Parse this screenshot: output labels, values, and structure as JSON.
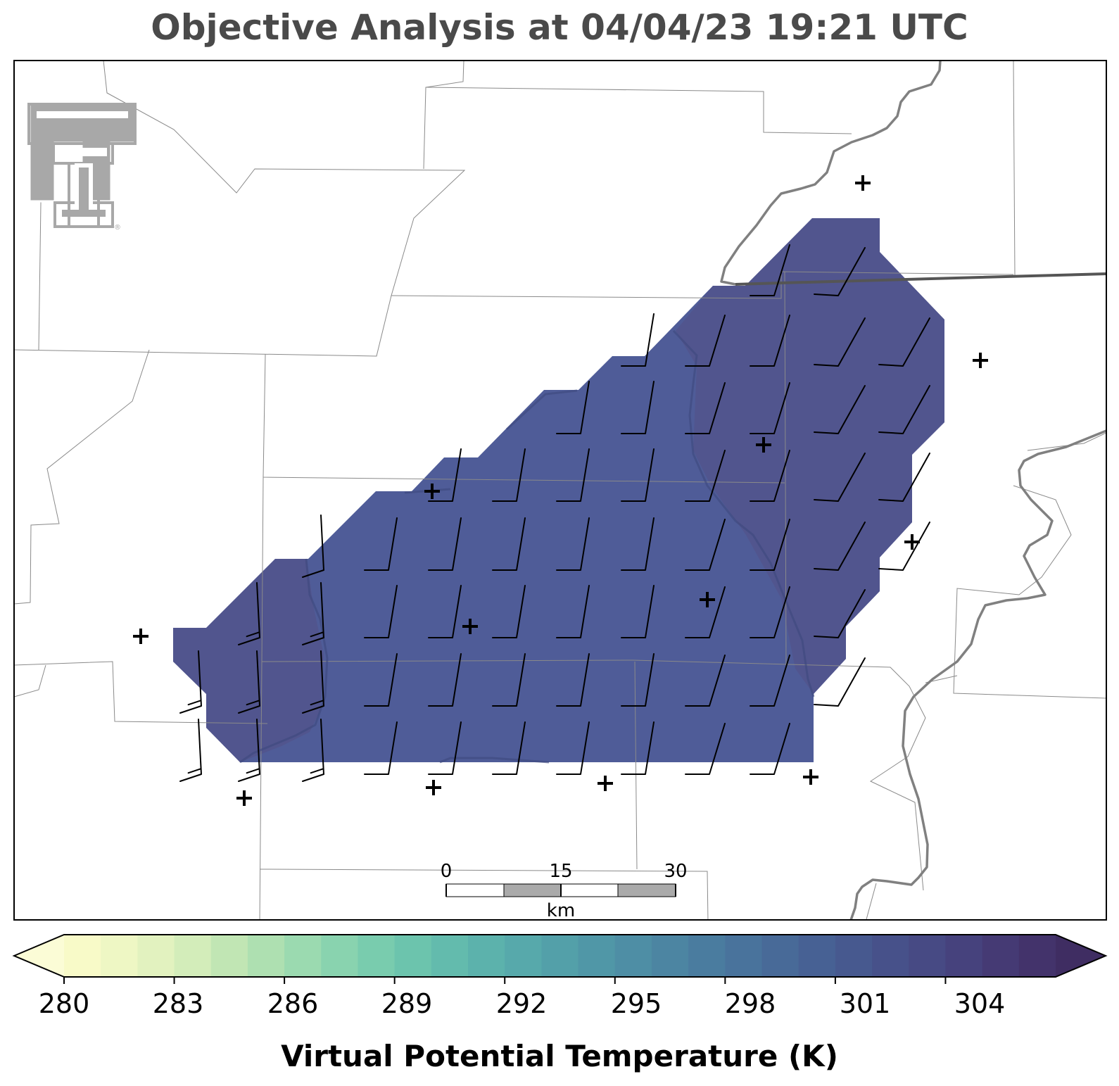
{
  "title": "Objective Analysis at 04/04/23 19:21 UTC",
  "colorbar": {
    "label": "Virtual Potential Temperature (K)",
    "ticks": [
      "280",
      "283",
      "286",
      "289",
      "292",
      "295",
      "298",
      "301",
      "304"
    ],
    "min": 280,
    "max": 307,
    "step": 1,
    "extend": "both",
    "colors": [
      "#f8fac8",
      "#eef7c4",
      "#e2f2bf",
      "#d3edba",
      "#c1e6b4",
      "#aee0b1",
      "#9bdab0",
      "#89d3af",
      "#79ccae",
      "#6cc4ad",
      "#63bbad",
      "#5cb2ac",
      "#57a9ab",
      "#53a0a9",
      "#5097a7",
      "#4e8ea5",
      "#4c85a2",
      "#4a7c9f",
      "#49739c",
      "#486a98",
      "#476194",
      "#47598f",
      "#47518a",
      "#474a84",
      "#46427d",
      "#453a74",
      "#43336b"
    ],
    "under_color": "#fbfcd6",
    "over_color": "#3f2d62"
  },
  "field": {
    "name": "Virtual Potential Temperature",
    "units": "K",
    "dominant_value": 303,
    "range": [
      302,
      304
    ]
  },
  "scale_bar": {
    "labels": [
      "0",
      "15",
      "30"
    ],
    "unit": "km"
  },
  "logo": {
    "name": "Texas Tech Double T",
    "registered_mark": "®"
  },
  "icons": {
    "station": "plus-marker",
    "wind": "wind-barb"
  },
  "wind_barb_summary": {
    "count": 78,
    "predominant_direction_from": "south-southwest",
    "barb": "one full barb per staff"
  }
}
